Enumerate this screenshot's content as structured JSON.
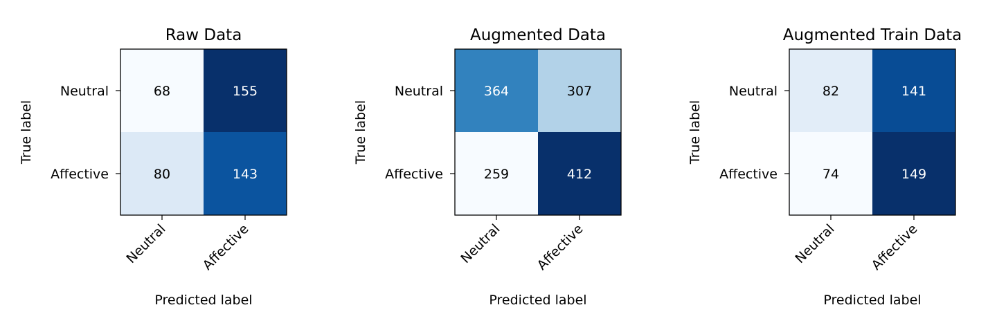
{
  "chart_data": [
    {
      "type": "heatmap",
      "title": "Raw Data",
      "xlabel": "Predicted label",
      "ylabel": "True label",
      "x_categories": [
        "Neutral",
        "Affective"
      ],
      "y_categories": [
        "Neutral",
        "Affective"
      ],
      "values": [
        [
          68,
          155
        ],
        [
          80,
          143
        ]
      ],
      "colormap": "Blues"
    },
    {
      "type": "heatmap",
      "title": "Augmented Data",
      "xlabel": "Predicted label",
      "ylabel": "True label",
      "x_categories": [
        "Neutral",
        "Affective"
      ],
      "y_categories": [
        "Neutral",
        "Affective"
      ],
      "values": [
        [
          364,
          307
        ],
        [
          259,
          412
        ]
      ],
      "colormap": "Blues"
    },
    {
      "type": "heatmap",
      "title": "Augmented Train Data",
      "xlabel": "Predicted label",
      "ylabel": "True label",
      "x_categories": [
        "Neutral",
        "Affective"
      ],
      "y_categories": [
        "Neutral",
        "Affective"
      ],
      "values": [
        [
          82,
          141
        ],
        [
          74,
          149
        ]
      ],
      "colormap": "Blues"
    }
  ]
}
